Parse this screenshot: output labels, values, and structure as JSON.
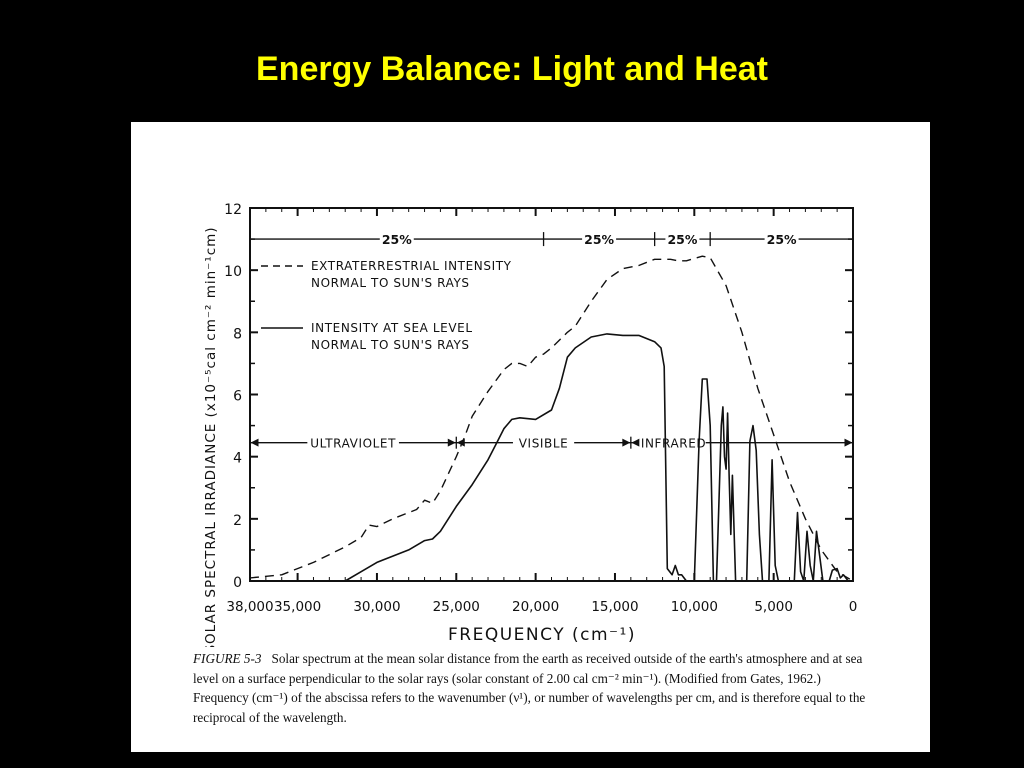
{
  "slide": {
    "title": "Energy Balance: Light and Heat"
  },
  "caption": {
    "figure_label": "FIGURE 5-3",
    "text": "Solar spectrum at the mean solar distance from the earth as received outside of the earth's atmosphere and at sea level on a surface perpendicular to the solar rays (solar constant of 2.00 cal cm⁻² min⁻¹). (Modified from Gates, 1962.) Frequency (cm⁻¹) of the abscissa refers to the wavenumber (ν¹), or number of wavelengths per cm, and is therefore equal to the reciprocal of the wavelength."
  },
  "chart_data": {
    "type": "line",
    "title": "",
    "xlabel": "FREQUENCY (cm⁻¹)",
    "ylabel": "SOLAR SPECTRAL IRRADIANCE (x10⁻⁵cal cm⁻² min⁻¹cm)",
    "xlim": [
      38000,
      0
    ],
    "ylim": [
      0,
      12
    ],
    "x_reversed": true,
    "grid": false,
    "x_ticks": [
      38000,
      35000,
      30000,
      25000,
      20000,
      15000,
      10000,
      5000,
      0
    ],
    "x_tick_labels": [
      "38,000",
      "35,000",
      "30,000",
      "25,000",
      "20,000",
      "15,000",
      "10,000",
      "5,000",
      "0"
    ],
    "y_ticks": [
      0,
      2,
      4,
      6,
      8,
      10,
      12
    ],
    "y_tick_labels": [
      "0",
      "2",
      "4",
      "6",
      "8",
      "10",
      "12"
    ],
    "legend_placement": "top-left",
    "series": [
      {
        "name": "EXTRATERRESTRIAL INTENSITY NORMAL TO SUN'S RAYS",
        "style": "dashed",
        "points": [
          [
            38000,
            0.1
          ],
          [
            36000,
            0.2
          ],
          [
            34000,
            0.6
          ],
          [
            32000,
            1.1
          ],
          [
            31000,
            1.4
          ],
          [
            30500,
            1.8
          ],
          [
            30000,
            1.75
          ],
          [
            29000,
            2.0
          ],
          [
            28000,
            2.2
          ],
          [
            27500,
            2.3
          ],
          [
            27000,
            2.6
          ],
          [
            26500,
            2.5
          ],
          [
            26000,
            2.9
          ],
          [
            25000,
            4.0
          ],
          [
            24500,
            4.6
          ],
          [
            24000,
            5.3
          ],
          [
            23000,
            6.1
          ],
          [
            22000,
            6.8
          ],
          [
            21500,
            7.0
          ],
          [
            21000,
            7.0
          ],
          [
            20500,
            6.9
          ],
          [
            20000,
            7.2
          ],
          [
            19500,
            7.3
          ],
          [
            19000,
            7.5
          ],
          [
            18000,
            8.0
          ],
          [
            17500,
            8.2
          ],
          [
            16500,
            9.0
          ],
          [
            15500,
            9.7
          ],
          [
            14500,
            10.05
          ],
          [
            13500,
            10.15
          ],
          [
            12500,
            10.35
          ],
          [
            11500,
            10.35
          ],
          [
            11000,
            10.3
          ],
          [
            10500,
            10.3
          ],
          [
            9500,
            10.45
          ],
          [
            9000,
            10.4
          ],
          [
            8000,
            9.5
          ],
          [
            7000,
            8.0
          ],
          [
            6000,
            6.2
          ],
          [
            5000,
            4.7
          ],
          [
            4000,
            3.2
          ],
          [
            3000,
            2.0
          ],
          [
            2000,
            1.0
          ],
          [
            1000,
            0.3
          ],
          [
            0,
            0
          ]
        ]
      },
      {
        "name": "INTENSITY AT SEA LEVEL NORMAL TO SUN'S RAYS",
        "style": "solid",
        "points": [
          [
            38000,
            0
          ],
          [
            32000,
            0
          ],
          [
            31000,
            0.3
          ],
          [
            30000,
            0.6
          ],
          [
            29000,
            0.8
          ],
          [
            28000,
            1.0
          ],
          [
            27000,
            1.3
          ],
          [
            26500,
            1.35
          ],
          [
            26000,
            1.6
          ],
          [
            25000,
            2.4
          ],
          [
            24000,
            3.1
          ],
          [
            23500,
            3.5
          ],
          [
            23000,
            3.9
          ],
          [
            22500,
            4.4
          ],
          [
            22000,
            4.9
          ],
          [
            21500,
            5.2
          ],
          [
            21000,
            5.25
          ],
          [
            20000,
            5.2
          ],
          [
            19000,
            5.5
          ],
          [
            18500,
            6.2
          ],
          [
            18000,
            7.2
          ],
          [
            17500,
            7.5
          ],
          [
            16500,
            7.85
          ],
          [
            15500,
            7.95
          ],
          [
            14500,
            7.9
          ],
          [
            13500,
            7.9
          ],
          [
            12500,
            7.7
          ],
          [
            12100,
            7.5
          ],
          [
            11900,
            6.9
          ],
          [
            11700,
            0.4
          ],
          [
            11400,
            0.2
          ],
          [
            11200,
            0.5
          ],
          [
            11000,
            0.2
          ],
          [
            10800,
            0.2
          ],
          [
            10500,
            0
          ],
          [
            10000,
            0
          ],
          [
            9700,
            4.5
          ],
          [
            9500,
            6.5
          ],
          [
            9200,
            6.5
          ],
          [
            9000,
            5.0
          ],
          [
            8800,
            0
          ],
          [
            8600,
            0
          ],
          [
            8300,
            5.0
          ],
          [
            8200,
            5.6
          ],
          [
            8100,
            4.0
          ],
          [
            8000,
            3.6
          ],
          [
            7900,
            5.4
          ],
          [
            7800,
            3.3
          ],
          [
            7700,
            1.5
          ],
          [
            7600,
            3.4
          ],
          [
            7400,
            0
          ],
          [
            6700,
            0
          ],
          [
            6500,
            4.5
          ],
          [
            6300,
            5.0
          ],
          [
            6100,
            4.2
          ],
          [
            5900,
            1.5
          ],
          [
            5700,
            0
          ],
          [
            5300,
            0
          ],
          [
            5100,
            3.9
          ],
          [
            4900,
            0.5
          ],
          [
            4700,
            0
          ],
          [
            3700,
            0
          ],
          [
            3500,
            2.2
          ],
          [
            3300,
            0.3
          ],
          [
            3100,
            0
          ],
          [
            2900,
            1.6
          ],
          [
            2700,
            0.5
          ],
          [
            2500,
            0
          ],
          [
            2300,
            1.6
          ],
          [
            2100,
            0.8
          ],
          [
            1900,
            0
          ],
          [
            1500,
            0
          ],
          [
            1300,
            0.35
          ],
          [
            1000,
            0.4
          ],
          [
            800,
            0.1
          ],
          [
            600,
            0.2
          ],
          [
            300,
            0
          ],
          [
            0,
            0
          ]
        ]
      }
    ],
    "bands": [
      {
        "label": "ULTRAVIOLET",
        "from": 38000,
        "to": 25000,
        "y": 4.45
      },
      {
        "label": "VISIBLE",
        "from": 25000,
        "to": 14000,
        "y": 4.45
      },
      {
        "label": "INFRARED",
        "from": 14000,
        "to": 0,
        "y": 4.45
      }
    ],
    "percent_markers": [
      {
        "label": "25%",
        "from": 38000,
        "to": 19500,
        "y": 11.0
      },
      {
        "label": "25%",
        "from": 19500,
        "to": 12500,
        "y": 11.0
      },
      {
        "label": "25%",
        "from": 12500,
        "to": 9000,
        "y": 11.0
      },
      {
        "label": "25%",
        "from": 9000,
        "to": 0,
        "y": 11.0
      }
    ]
  }
}
